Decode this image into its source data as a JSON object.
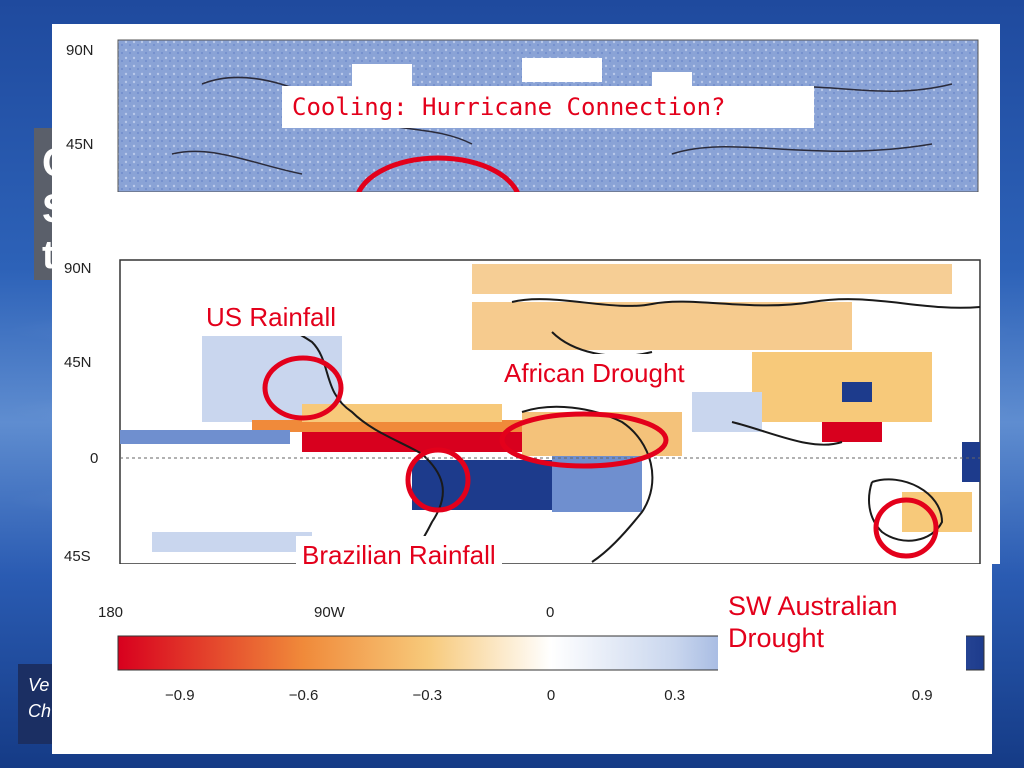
{
  "slide": {
    "title_fragment": "C\nS\nt",
    "credit_fragment": "Ve\nCh"
  },
  "top_map": {
    "lat_labels": [
      "90N",
      "45N"
    ],
    "callout": "Cooling: Hurricane Connection?"
  },
  "bottom_map": {
    "lat_labels": [
      "90N",
      "45N",
      "0",
      "45S"
    ],
    "lon_labels": [
      "180",
      "90W",
      "0"
    ],
    "callouts": {
      "us": "US Rainfall",
      "african": "African Drought",
      "brazil": "Brazilian Rainfall",
      "sw_australia": "SW Australian Drought"
    }
  },
  "colorbar": {
    "ticks": [
      "−0.9",
      "−0.6",
      "−0.3",
      "0",
      "0.3",
      "0.9"
    ],
    "tick_values": [
      -0.9,
      -0.6,
      -0.3,
      0,
      0.3,
      0.9
    ],
    "range": [
      -1.05,
      1.05
    ],
    "colors": {
      "strong_negative": "#d8001e",
      "negative": "#f08a3a",
      "weak_negative": "#f7c97a",
      "neutral": "#ffffff",
      "weak_positive": "#c9d6ee",
      "positive": "#6f8fcf",
      "strong_positive": "#1d3b8c"
    }
  },
  "annotation_color": "#e3001b"
}
